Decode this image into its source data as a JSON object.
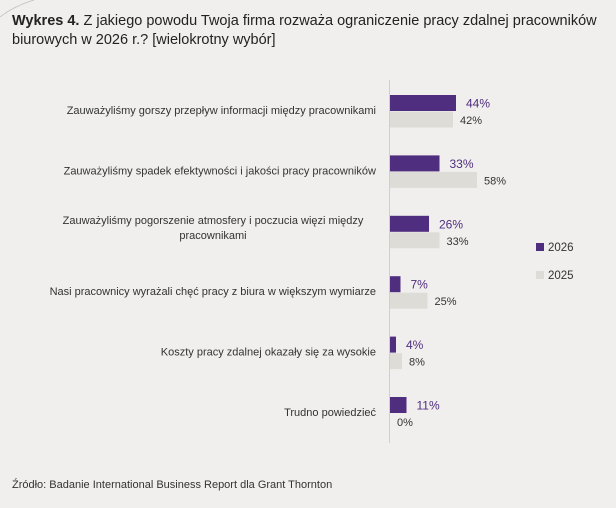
{
  "header": {
    "label_bold": "Wykres 4.",
    "title": "Z jakiego powodu Twoja firma rozważa ograniczenie pracy zdalnej pracowników biurowych w 2026 r.? [wielokrotny wybór]"
  },
  "colors": {
    "series_2026": "#4f2d7f",
    "series_2025": "#dedcd7",
    "background": "#f0efed"
  },
  "chart_data": {
    "type": "bar",
    "orientation": "horizontal",
    "title": "Z jakiego powodu Twoja firma rozważa ograniczenie pracy zdalnej pracowników biurowych w 2026 r.? [wielokrotny wybór]",
    "xlabel": "",
    "ylabel": "",
    "xlim": [
      0,
      100
    ],
    "grid": false,
    "legend_position": "right",
    "categories": [
      [
        "Zauważyliśmy gorszy przepływ informacji między pracownikami"
      ],
      [
        "Zauważyliśmy spadek efektywności i jakości pracy pracowników"
      ],
      [
        "Zauważyliśmy pogorszenie atmosfery i poczucia więzi między",
        "pracownikami"
      ],
      [
        "Nasi pracownicy wyrażali chęć pracy z biura w większym wymiarze"
      ],
      [
        "Koszty pracy zdalnej okazały się za wysokie"
      ],
      [
        "Trudno powiedzieć"
      ]
    ],
    "series": [
      {
        "name": "2026",
        "values": [
          44,
          33,
          26,
          7,
          4,
          11
        ],
        "labels": [
          "44%",
          "33%",
          "26%",
          "7%",
          "4%",
          "11%"
        ]
      },
      {
        "name": "2025",
        "values": [
          42,
          58,
          33,
          25,
          8,
          0
        ],
        "labels": [
          "42%",
          "58%",
          "33%",
          "25%",
          "8%",
          "0%"
        ]
      }
    ]
  },
  "footer": {
    "source": "Źródło: Badanie International Business Report dla Grant Thornton"
  }
}
